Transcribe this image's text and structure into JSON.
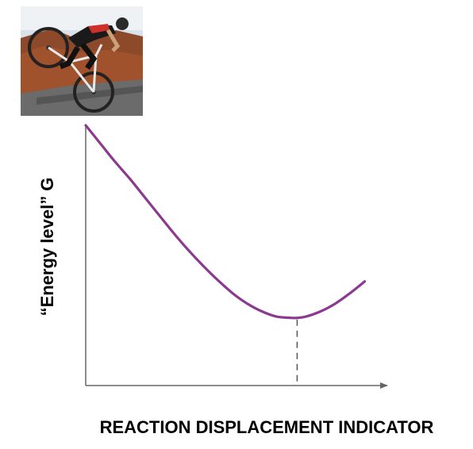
{
  "photo": {
    "subject": "cyclist-performing-wheelie-icon"
  },
  "chart_data": {
    "type": "line",
    "xlabel": "REACTION DISPLACEMENT INDICATOR",
    "ylabel": "“Energy level” G",
    "title": "",
    "xlim": [
      0,
      100
    ],
    "ylim": [
      0,
      100
    ],
    "grid": false,
    "series": [
      {
        "color": "#8B3A8F",
        "x": [
          0,
          5,
          10,
          15,
          20,
          25,
          30,
          35,
          40,
          45,
          50,
          55,
          60,
          65,
          70,
          72,
          75,
          80,
          85,
          90,
          95
        ],
        "y": [
          100,
          93,
          86,
          79.5,
          72.5,
          65.5,
          58.5,
          52,
          46,
          40.5,
          35.5,
          31.5,
          28.5,
          26.5,
          26,
          26,
          26.5,
          28.5,
          31.5,
          35.5,
          40
        ]
      }
    ],
    "minimum_marker": {
      "x": 72,
      "y": 26,
      "style": "dashed"
    }
  },
  "colors": {
    "curve": "#8B3A8F",
    "axis": "#666666",
    "dash": "#555555"
  }
}
